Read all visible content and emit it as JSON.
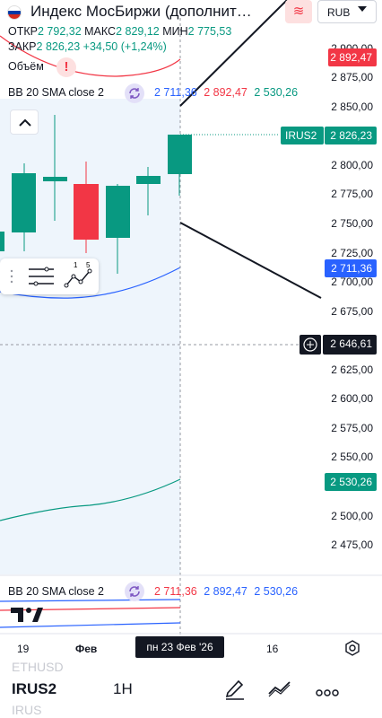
{
  "header": {
    "title": "Индекс МосБиржи (дополнит…",
    "currency": "RUB"
  },
  "ohlc": {
    "open_label": "ОТКР",
    "open_value": "2 792,32",
    "high_label": "МАКС",
    "high_value": "2 829,12",
    "low_label": "МИН",
    "low_value": "2 775,53",
    "close_label": "ЗАКР",
    "close_value": "2 826,23",
    "change": "+34,50 (+1,24%)"
  },
  "volume_label": "Объём",
  "indicator": {
    "name": "BB 20 SMA close 2",
    "basis": "2 711,36",
    "upper": "2 892,47",
    "lower": "2 530,26"
  },
  "indicator2": {
    "name": "BB 20 SMA close 2",
    "basis": "2 711,36",
    "upper": "2 892,47",
    "lower": "2 530,26"
  },
  "price_axis": {
    "ticks": [
      "2 900,00",
      "2 875,00",
      "2 850,00",
      "2 800,00",
      "2 775,00",
      "2 750,00",
      "2 725,00",
      "2 700,00",
      "2 675,00",
      "2 625,00",
      "2 600,00",
      "2 575,00",
      "2 550,00",
      "2 500,00",
      "2 475,00"
    ],
    "tags": {
      "upper_band": "2 892,47",
      "symbol": "IRUS2",
      "last_price": "2 826,23",
      "basis": "2 711,36",
      "crosshair": "2 646,61",
      "lower_band": "2 530,26"
    }
  },
  "time_axis": {
    "labels": [
      "19",
      "Фев",
      "16"
    ],
    "crosshair_label": "пн 23 Фев '26"
  },
  "colors": {
    "up": "#089981",
    "down": "#f23645",
    "basis": "#2962ff",
    "upper": "#f23645",
    "lower": "#089981",
    "accent": "#7e57c2"
  },
  "bottom": {
    "ghost_top": "ETHUSD",
    "symbol": "IRUS2",
    "interval": "1H",
    "ghost_bottom": "IRUS"
  },
  "icons": [
    "sync-icon",
    "alert-icon",
    "chevron-up-icon",
    "list-settings-icon",
    "indicator-icon",
    "plus-circle-icon",
    "settings-icon",
    "pencil-icon",
    "trend-icon",
    "more-icon",
    "tradingview-logo-icon",
    "russia-flag-icon",
    "chevron-down-icon",
    "indicators-badge-icon"
  ]
}
